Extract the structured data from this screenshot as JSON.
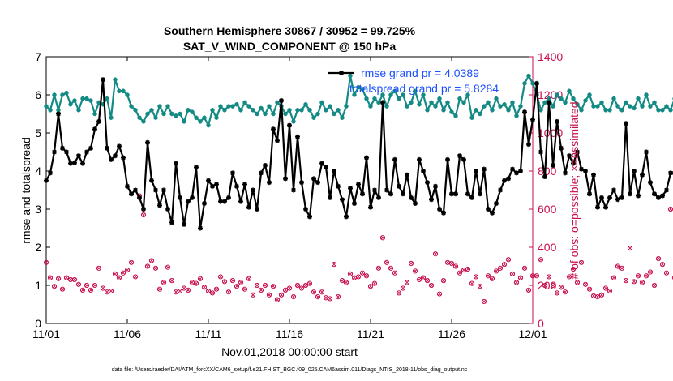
{
  "chart_data": {
    "type": "line",
    "title_line1": "Southern Hemisphere 30867 / 30952 = 99.725%",
    "title_line2": "SAT_V_WIND_COMPONENT @ 150 hPa",
    "xlabel": "Nov.01,2018 00:00:00 start",
    "ylabel_left": "rmse and totalspread",
    "ylabel_right": "# of obs: o=possible; ×=assimilated",
    "footnote": "data file: /Users/raeder/DAI/ATM_forcXX/CAM6_setup/f.e21.FHIST_BGC.f09_025.CAM6assim.011/Diags_NTrS_2018-11/obs_diag_output.nc",
    "x_ticks": [
      {
        "value": 0,
        "label": "11/01"
      },
      {
        "value": 5,
        "label": "11/06"
      },
      {
        "value": 10,
        "label": "11/11"
      },
      {
        "value": 15,
        "label": "11/16"
      },
      {
        "value": 20,
        "label": "11/21"
      },
      {
        "value": 25,
        "label": "11/26"
      },
      {
        "value": 30,
        "label": "12/01"
      }
    ],
    "xlim": [
      0,
      30
    ],
    "ylim_left": [
      0,
      7
    ],
    "y_ticks_left": [
      "0",
      "1",
      "2",
      "3",
      "4",
      "5",
      "6",
      "7"
    ],
    "ylim_right": [
      0,
      1400
    ],
    "y_ticks_right": [
      "0",
      "200",
      "400",
      "600",
      "800",
      "1000",
      "1200",
      "1400"
    ],
    "legend": [
      {
        "label": "rmse grand pr = 4.0389",
        "color": "#000000"
      },
      {
        "label": "totalspread grand pr = 5.8284",
        "color": "#138a84"
      }
    ],
    "x_step_days": 0.25,
    "series": [
      {
        "name": "rmse",
        "color": "#000000",
        "axis": "left",
        "values": [
          3.75,
          3.95,
          4.5,
          5.5,
          4.6,
          4.5,
          4.2,
          4.22,
          4.4,
          4.2,
          4.5,
          4.6,
          5.1,
          5.3,
          6.4,
          4.6,
          4.3,
          4.4,
          4.65,
          4.35,
          3.6,
          3.4,
          3.5,
          3.3,
          3.0,
          4.75,
          3.75,
          3.5,
          3.1,
          3.5,
          3.0,
          2.65,
          4.2,
          3.3,
          2.6,
          3.2,
          3.3,
          4.1,
          2.5,
          3.15,
          3.75,
          3.6,
          3.65,
          3.2,
          3.2,
          3.3,
          3.95,
          3.6,
          3.2,
          3.65,
          3.05,
          3.5,
          3.0,
          3.95,
          4.15,
          3.7,
          5.1,
          4.8,
          5.85,
          3.8,
          5.2,
          3.5,
          4.9,
          3.7,
          3.0,
          2.8,
          3.8,
          3.7,
          4.2,
          4.1,
          3.3,
          4.0,
          3.6,
          3.25,
          2.8,
          3.55,
          3.15,
          3.65,
          3.4,
          4.35,
          3.05,
          3.5,
          3.3,
          5.8,
          3.5,
          3.4,
          4.3,
          3.6,
          3.4,
          3.9,
          3.3,
          3.15,
          4.3,
          4.0,
          3.7,
          3.25,
          3.6,
          3.0,
          2.9,
          4.3,
          3.4,
          3.4,
          4.4,
          4.3,
          3.4,
          3.3,
          4.0,
          3.4,
          4.05,
          3.0,
          2.9,
          3.15,
          3.5,
          3.75,
          3.8,
          4.05,
          3.95,
          4.0,
          5.55,
          4.7,
          5.35,
          6.3,
          4.5,
          3.85,
          5.8,
          4.15,
          5.3,
          4.6,
          3.95,
          4.4,
          4.2,
          4.5,
          4.05,
          4.0,
          3.4,
          3.9,
          3.05,
          3.3,
          3.05,
          3.3,
          3.5,
          3.25,
          3.3,
          5.25,
          3.4,
          4.0,
          3.35,
          3.9,
          4.5,
          3.7,
          3.4,
          3.3,
          3.35,
          3.5,
          3.95,
          3.95
        ]
      },
      {
        "name": "totalspread",
        "color": "#138a84",
        "axis": "left",
        "values": [
          5.7,
          5.6,
          6.0,
          5.6,
          6.0,
          6.05,
          5.75,
          5.85,
          5.6,
          5.9,
          5.9,
          5.85,
          5.5,
          5.8,
          5.75,
          5.9,
          5.4,
          6.4,
          6.1,
          6.1,
          6.0,
          5.7,
          5.6,
          5.4,
          5.3,
          5.5,
          5.6,
          5.4,
          5.7,
          5.5,
          5.7,
          5.5,
          5.45,
          5.5,
          5.3,
          5.6,
          5.55,
          5.4,
          5.3,
          5.4,
          5.2,
          5.6,
          5.4,
          5.7,
          5.6,
          5.7,
          5.7,
          5.75,
          5.6,
          5.8,
          5.7,
          5.6,
          5.5,
          5.65,
          5.5,
          5.7,
          5.5,
          5.8,
          5.7,
          5.5,
          5.6,
          5.3,
          5.6,
          5.6,
          5.75,
          5.6,
          5.4,
          5.5,
          5.8,
          5.6,
          5.7,
          5.5,
          5.6,
          5.4,
          5.7,
          6.5,
          6.0,
          6.2,
          6.15,
          5.9,
          5.7,
          5.9,
          5.8,
          6.0,
          5.7,
          6.0,
          6.1,
          5.9,
          6.0,
          5.7,
          5.8,
          6.1,
          5.75,
          6.0,
          5.6,
          5.8,
          5.7,
          5.9,
          5.6,
          5.8,
          5.55,
          5.45,
          5.9,
          5.8,
          6.0,
          5.4,
          5.6,
          5.5,
          5.7,
          5.8,
          5.6,
          5.9,
          5.7,
          5.75,
          5.6,
          5.8,
          5.45,
          5.7,
          6.3,
          6.5,
          6.3,
          6.0,
          5.6,
          5.8,
          5.9,
          5.7,
          6.0,
          5.9,
          5.8,
          6.1,
          5.9,
          5.75,
          5.6,
          5.85,
          6.0,
          5.7,
          5.7,
          5.8,
          5.6,
          5.6,
          5.9,
          5.7,
          5.6,
          5.8,
          5.7,
          5.65,
          5.9,
          5.7,
          6.0,
          5.7,
          5.8,
          5.6,
          5.6,
          5.7,
          5.6,
          5.9,
          5.8,
          6.1
        ]
      },
      {
        "name": "obs_possible",
        "color": "#c8104f",
        "axis": "right",
        "values": [
          320,
          240,
          195,
          235,
          180,
          240,
          230,
          230,
          205,
          175,
          200,
          175,
          200,
          290,
          185,
          165,
          170,
          260,
          240,
          265,
          280,
          320,
          245,
          670,
          570,
          300,
          330,
          290,
          180,
          215,
          295,
          225,
          165,
          170,
          185,
          175,
          215,
          210,
          235,
          190,
          170,
          160,
          180,
          245,
          220,
          165,
          225,
          195,
          215,
          180,
          235,
          150,
          200,
          175,
          200,
          150,
          195,
          125,
          150,
          175,
          185,
          140,
          200,
          185,
          200,
          210,
          165,
          140,
          165,
          135,
          130,
          310,
          140,
          225,
          215,
          260,
          240,
          245,
          265,
          250,
          195,
          210,
          290,
          450,
          320,
          290,
          265,
          160,
          185,
          215,
          315,
          275,
          230,
          240,
          225,
          200,
          365,
          155,
          225,
          320,
          315,
          300,
          265,
          280,
          285,
          210,
          245,
          195,
          115,
          250,
          235,
          275,
          290,
          310,
          335,
          260,
          215,
          240,
          290,
          175,
          250,
          250,
          335,
          200,
          245,
          200,
          160,
          190,
          165,
          245,
          285,
          215,
          320,
          205,
          180,
          145,
          140,
          150,
          185,
          170,
          240,
          300,
          290,
          225,
          395,
          220,
          250,
          215,
          250,
          270,
          200,
          340,
          310,
          265,
          600,
          240,
          255,
          695,
          335,
          300,
          245
        ]
      }
    ]
  }
}
